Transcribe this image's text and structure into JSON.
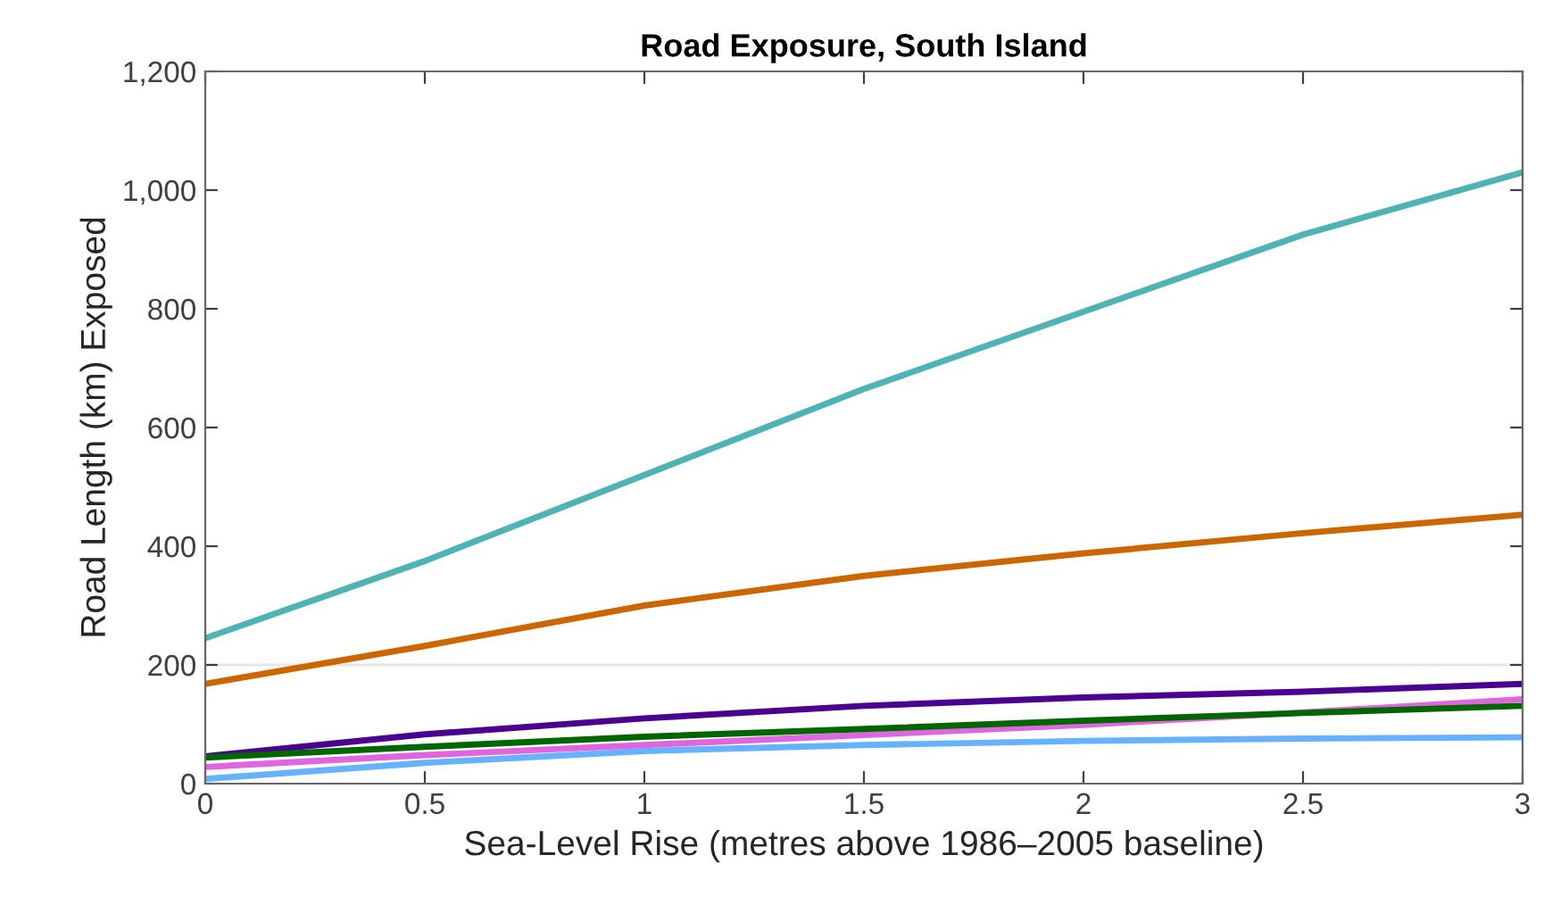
{
  "chart_data": {
    "type": "line",
    "title": "Road Exposure, South Island",
    "xlabel": "Sea-Level Rise (metres above 1986–2005 baseline)",
    "ylabel": "Road Length (km) Exposed",
    "x": [
      0,
      0.5,
      1,
      1.5,
      2,
      2.5,
      3
    ],
    "series": [
      {
        "color": "#4db3b3",
        "values": [
          245,
          375,
          520,
          665,
          795,
          925,
          1030
        ]
      },
      {
        "color": "#cc6600",
        "values": [
          168,
          232,
          300,
          350,
          388,
          422,
          453
        ]
      },
      {
        "color": "#4b0092",
        "values": [
          46,
          83,
          110,
          131,
          145,
          155,
          168
        ]
      },
      {
        "color": "#e066e0",
        "values": [
          28,
          48,
          65,
          82,
          99,
          120,
          142
        ]
      },
      {
        "color": "#006600",
        "values": [
          44,
          62,
          79,
          92,
          106,
          119,
          131
        ]
      },
      {
        "color": "#66b2ff",
        "values": [
          8,
          35,
          55,
          65,
          72,
          76,
          78
        ]
      }
    ],
    "xlim": [
      0,
      3
    ],
    "xticks": [
      0,
      0.5,
      1,
      1.5,
      2,
      2.5,
      3
    ],
    "ylim": [
      0,
      1200
    ],
    "yticks": [
      {
        "value": 0,
        "label": "0"
      },
      {
        "value": 200,
        "label": "200"
      },
      {
        "value": 400,
        "label": "400"
      },
      {
        "value": 600,
        "label": "600"
      },
      {
        "value": 800,
        "label": "800"
      },
      {
        "value": 1000,
        "label": "1,000"
      },
      {
        "value": 1200,
        "label": "1,200"
      }
    ],
    "ref_lines": [
      {
        "axis": "y",
        "value": 200,
        "color": "#e6e6e6"
      }
    ],
    "grid": false,
    "legend": false,
    "marker": "none",
    "line_style": "solid"
  }
}
